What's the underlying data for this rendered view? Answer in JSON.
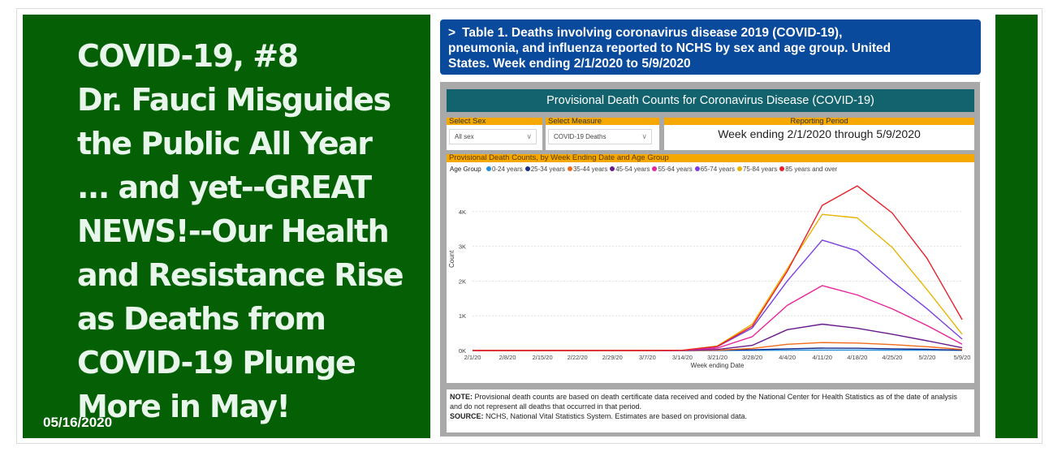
{
  "headline_lines": [
    "COVID-19, #8",
    "Dr. Fauci Misguides",
    "the Public All Year",
    "... and yet--GREAT",
    "NEWS!--Our Health",
    "and Resistance Rise",
    "as Deaths from",
    "COVID-19 Plunge",
    "More in May!"
  ],
  "date": "05/16/2020",
  "banner": {
    "chevron": ">",
    "lines": [
      "Table 1. Deaths involving coronavirus disease 2019 (COVID-19),",
      "pneumonia, and influenza reported to NCHS by sex and age group. United",
      "States. Week ending 2/1/2020 to 5/9/2020"
    ]
  },
  "dashboard": {
    "title": "Provisional Death Counts for Coronavirus Disease (COVID-19)",
    "select_sex": {
      "label": "Select Sex",
      "value": "All sex"
    },
    "select_measure": {
      "label": "Select Measure",
      "value": "COVID-19 Deaths"
    },
    "reporting_period": {
      "label": "Reporting Period",
      "value": "Week ending 2/1/2020 through 5/9/2020"
    },
    "chart_header": "Provisional Death Counts, by Week Ending Date and Age Group",
    "legend_title": "Age Group",
    "note_label": "NOTE:",
    "note_text": " Provisional death counts are based on death certificate data received and coded by the National Center for Health Statistics as of the date of analysis and do not represent all deaths that occurred in that period.",
    "source_label": "SOURCE:",
    "source_text": " NCHS, National Vital Statistics System. Estimates are based on provisional data."
  },
  "chart_data": {
    "type": "line",
    "xlabel": "Week ending Date",
    "ylabel": "Count",
    "x": [
      "2/1/20",
      "2/8/20",
      "2/15/20",
      "2/22/20",
      "2/29/20",
      "3/7/20",
      "3/14/20",
      "3/21/20",
      "3/28/20",
      "4/4/20",
      "4/11/20",
      "4/18/20",
      "4/25/20",
      "5/2/20",
      "5/9/20"
    ],
    "ylim": [
      0,
      5000
    ],
    "yticks": [
      0,
      1000,
      2000,
      3000,
      4000
    ],
    "ytick_labels": [
      "0K",
      "1K",
      "2K",
      "3K",
      "4K"
    ],
    "series": [
      {
        "name": "0-24 years",
        "color": "#1f8fe0",
        "values": [
          0,
          0,
          0,
          0,
          0,
          0,
          0,
          2,
          5,
          10,
          15,
          15,
          12,
          10,
          5
        ]
      },
      {
        "name": "25-34 years",
        "color": "#1a2a8a",
        "values": [
          0,
          0,
          0,
          0,
          0,
          0,
          0,
          5,
          20,
          50,
          70,
          65,
          50,
          35,
          10
        ]
      },
      {
        "name": "35-44 years",
        "color": "#f26a1b",
        "values": [
          0,
          0,
          0,
          0,
          0,
          0,
          0,
          10,
          60,
          180,
          230,
          215,
          170,
          110,
          30
        ]
      },
      {
        "name": "45-54 years",
        "color": "#6a1b8a",
        "values": [
          0,
          0,
          0,
          0,
          0,
          0,
          2,
          30,
          150,
          600,
          760,
          640,
          470,
          280,
          80
        ]
      },
      {
        "name": "55-64 years",
        "color": "#e8259a",
        "values": [
          0,
          0,
          0,
          0,
          0,
          0,
          3,
          70,
          400,
          1300,
          1870,
          1600,
          1200,
          720,
          180
        ]
      },
      {
        "name": "65-74 years",
        "color": "#7b3fe0",
        "values": [
          0,
          0,
          0,
          0,
          0,
          0,
          5,
          110,
          650,
          2000,
          3180,
          2870,
          2000,
          1200,
          330
        ]
      },
      {
        "name": "75-84 years",
        "color": "#e8b400",
        "values": [
          0,
          0,
          0,
          0,
          0,
          0,
          7,
          130,
          760,
          2350,
          3920,
          3820,
          2970,
          1750,
          470
        ]
      },
      {
        "name": "85 years and over",
        "color": "#e8202a",
        "values": [
          0,
          0,
          0,
          0,
          0,
          0,
          8,
          120,
          700,
          2280,
          4180,
          4740,
          3960,
          2650,
          890
        ]
      }
    ]
  }
}
